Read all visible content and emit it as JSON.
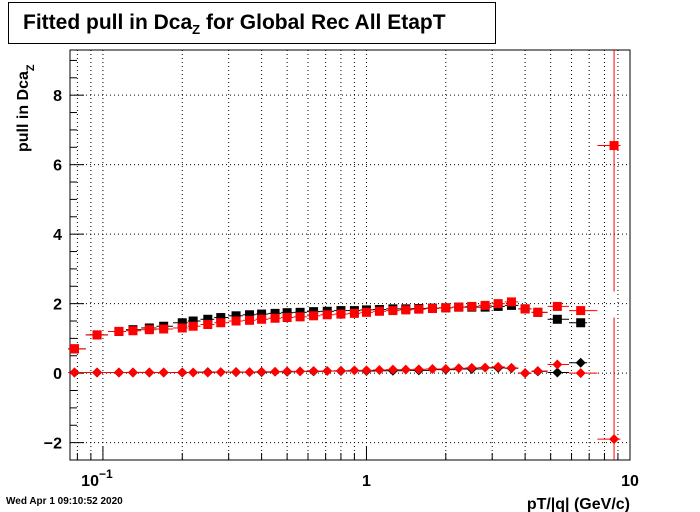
{
  "chart_data": {
    "type": "scatter",
    "title_main": "Fitted pull in Dca",
    "title_sub": "Z",
    "title_rest": " for Global Rec All EtapT",
    "ylabel_main": "pull in Dca",
    "ylabel_sub": "Z",
    "xlabel": "pT/|q| (GeV/c)",
    "x_scale": "log",
    "xlim": [
      0.075,
      10
    ],
    "ylim": [
      -2.5,
      9.3
    ],
    "grid": true,
    "x_tick_labels": [
      "10",
      "1",
      "10"
    ],
    "x_tick_sup": "−1",
    "y_ticks": [
      -2,
      0,
      2,
      4,
      6,
      8
    ],
    "y_tick_labels": [
      "−2",
      "0",
      "2",
      "4",
      "6",
      "8"
    ],
    "series": [
      {
        "marker": "square",
        "color": "#000000",
        "x": [
          0.078,
          0.095,
          0.115,
          0.13,
          0.15,
          0.17,
          0.2,
          0.22,
          0.25,
          0.28,
          0.32,
          0.36,
          0.4,
          0.45,
          0.5,
          0.56,
          0.63,
          0.71,
          0.8,
          0.9,
          1.0,
          1.12,
          1.26,
          1.41,
          1.58,
          1.78,
          2.0,
          2.24,
          2.51,
          2.82,
          3.16,
          3.55,
          4.0,
          4.47,
          5.3,
          6.5
        ],
        "y": [
          0.7,
          1.1,
          1.2,
          1.25,
          1.3,
          1.35,
          1.45,
          1.5,
          1.55,
          1.6,
          1.65,
          1.68,
          1.7,
          1.72,
          1.74,
          1.75,
          1.77,
          1.78,
          1.8,
          1.8,
          1.82,
          1.83,
          1.85,
          1.85,
          1.86,
          1.87,
          1.88,
          1.9,
          1.9,
          1.9,
          1.92,
          1.95,
          1.85,
          1.75,
          1.55,
          1.45
        ]
      },
      {
        "marker": "square",
        "color": "#ff0000",
        "x": [
          0.078,
          0.095,
          0.115,
          0.13,
          0.15,
          0.17,
          0.2,
          0.22,
          0.25,
          0.28,
          0.32,
          0.36,
          0.4,
          0.45,
          0.5,
          0.56,
          0.63,
          0.71,
          0.8,
          0.9,
          1.0,
          1.12,
          1.26,
          1.41,
          1.58,
          1.78,
          2.0,
          2.24,
          2.51,
          2.82,
          3.16,
          3.55,
          4.0,
          4.47,
          5.3,
          6.5,
          8.7
        ],
        "y": [
          0.7,
          1.1,
          1.2,
          1.22,
          1.25,
          1.27,
          1.3,
          1.35,
          1.4,
          1.45,
          1.5,
          1.52,
          1.55,
          1.58,
          1.6,
          1.62,
          1.65,
          1.68,
          1.7,
          1.72,
          1.75,
          1.78,
          1.8,
          1.82,
          1.84,
          1.86,
          1.88,
          1.9,
          1.92,
          1.95,
          2.0,
          2.05,
          1.85,
          1.75,
          1.92,
          1.8,
          6.55
        ],
        "yerr_last": 4.2
      },
      {
        "marker": "diamond",
        "color": "#000000",
        "x": [
          0.078,
          0.095,
          0.115,
          0.13,
          0.15,
          0.17,
          0.2,
          0.25,
          0.32,
          0.4,
          0.5,
          0.63,
          0.8,
          1.0,
          1.26,
          1.58,
          2.0,
          2.51,
          3.16,
          3.55,
          4.0,
          4.47,
          5.3,
          6.5
        ],
        "y": [
          0.02,
          0.02,
          0.02,
          0.02,
          0.02,
          0.02,
          0.02,
          0.03,
          0.03,
          0.03,
          0.04,
          0.05,
          0.06,
          0.06,
          0.07,
          0.08,
          0.1,
          0.12,
          0.15,
          0.14,
          0.0,
          0.05,
          0.02,
          0.3
        ]
      },
      {
        "marker": "diamond",
        "color": "#ff0000",
        "x": [
          0.078,
          0.095,
          0.115,
          0.13,
          0.15,
          0.17,
          0.2,
          0.22,
          0.25,
          0.28,
          0.32,
          0.36,
          0.4,
          0.45,
          0.5,
          0.56,
          0.63,
          0.71,
          0.8,
          0.9,
          1.0,
          1.12,
          1.26,
          1.41,
          1.58,
          1.78,
          2.0,
          2.24,
          2.51,
          2.82,
          3.16,
          3.55,
          4.0,
          4.47,
          5.3,
          6.5,
          8.7
        ],
        "y": [
          0.02,
          0.02,
          0.02,
          0.02,
          0.02,
          0.02,
          0.02,
          0.02,
          0.02,
          0.03,
          0.03,
          0.03,
          0.04,
          0.04,
          0.05,
          0.05,
          0.06,
          0.06,
          0.07,
          0.08,
          0.08,
          0.09,
          0.1,
          0.1,
          0.11,
          0.12,
          0.12,
          0.14,
          0.15,
          0.16,
          0.18,
          0.15,
          0.0,
          0.06,
          0.25,
          0.0,
          -1.9
        ],
        "yerr_last": 3.5
      }
    ]
  },
  "datestamp": "Wed Apr  1 09:10:52 2020"
}
